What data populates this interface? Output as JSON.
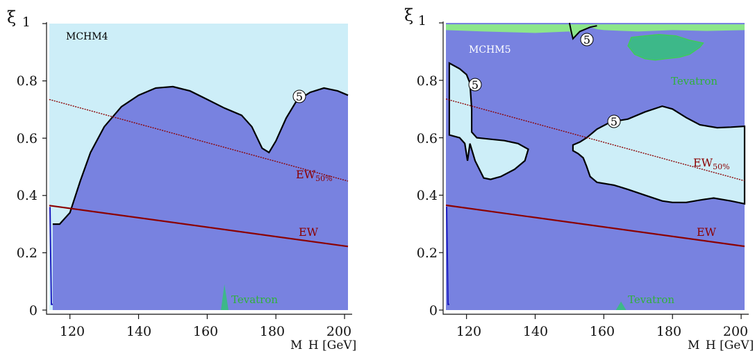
{
  "chart_data": [
    {
      "type": "area",
      "model_label": "MCHM4",
      "xlabel": "M_H [GeV]",
      "ylabel": "ξ",
      "xlim": [
        114,
        201
      ],
      "ylim": [
        0,
        1
      ],
      "xticks": [
        "120",
        "140",
        "160",
        "180",
        "200"
      ],
      "yticks": [
        "0",
        "0.2",
        "0.4",
        "0.6",
        "0.8",
        "1"
      ],
      "colors": {
        "allowed": "#cdeef8",
        "excluded": "#7882e0",
        "tevatron": "#3db889",
        "ew": "#8b0000"
      },
      "ew_line": {
        "label": "EW",
        "points": [
          [
            114,
            0.365
          ],
          [
            201,
            0.222
          ]
        ]
      },
      "ew50_line": {
        "label": "EW",
        "label_subscript": "50%",
        "points": [
          [
            114,
            0.735
          ],
          [
            201,
            0.45
          ]
        ]
      },
      "contour_5": {
        "label": "5",
        "points": [
          [
            115,
            0.3
          ],
          [
            117,
            0.3
          ],
          [
            120,
            0.34
          ],
          [
            123,
            0.45
          ],
          [
            126,
            0.55
          ],
          [
            130,
            0.64
          ],
          [
            135,
            0.71
          ],
          [
            140,
            0.75
          ],
          [
            145,
            0.775
          ],
          [
            150,
            0.78
          ],
          [
            155,
            0.765
          ],
          [
            160,
            0.735
          ],
          [
            165,
            0.705
          ],
          [
            170,
            0.68
          ],
          [
            173,
            0.64
          ],
          [
            176,
            0.565
          ],
          [
            178,
            0.55
          ],
          [
            180,
            0.59
          ],
          [
            183,
            0.67
          ],
          [
            186,
            0.73
          ],
          [
            190,
            0.76
          ],
          [
            194,
            0.775
          ],
          [
            198,
            0.765
          ],
          [
            201,
            0.75
          ]
        ]
      },
      "tevatron_region": {
        "label": "Tevatron",
        "points": [
          [
            164.0,
            0
          ],
          [
            165.0,
            0.09
          ],
          [
            166.2,
            0
          ]
        ]
      }
    },
    {
      "type": "area",
      "model_label": "MCHM5",
      "xlabel": "M_H [GeV]",
      "ylabel": "ξ",
      "xlim": [
        114,
        201
      ],
      "ylim": [
        0,
        1
      ],
      "xticks": [
        "120",
        "140",
        "160",
        "180",
        "200"
      ],
      "yticks": [
        "0",
        "0.2",
        "0.4",
        "0.6",
        "0.8",
        "1"
      ],
      "colors": {
        "allowed": "#cdeef8",
        "excluded": "#7882e0",
        "tevatron": "#3db889",
        "top_band": "#8ce68a",
        "ew": "#8b0000"
      },
      "ew_line": {
        "label": "EW",
        "points": [
          [
            114,
            0.365
          ],
          [
            201,
            0.222
          ]
        ]
      },
      "ew50_line": {
        "label": "EW",
        "label_subscript": "50%",
        "points": [
          [
            114,
            0.735
          ],
          [
            201,
            0.45
          ]
        ]
      },
      "contour_5": {
        "label": "5"
      },
      "allowed_regions": [
        [
          [
            115,
            0.86
          ],
          [
            118,
            0.84
          ],
          [
            120,
            0.82
          ],
          [
            121,
            0.79
          ],
          [
            121.5,
            0.7
          ],
          [
            121.5,
            0.62
          ],
          [
            123,
            0.6
          ],
          [
            127,
            0.595
          ],
          [
            131,
            0.59
          ],
          [
            135,
            0.58
          ],
          [
            138,
            0.56
          ],
          [
            137,
            0.52
          ],
          [
            134,
            0.49
          ],
          [
            130,
            0.465
          ],
          [
            127,
            0.455
          ],
          [
            125,
            0.46
          ],
          [
            122.5,
            0.52
          ],
          [
            121,
            0.58
          ],
          [
            120.3,
            0.52
          ],
          [
            119.5,
            0.58
          ],
          [
            118,
            0.6
          ],
          [
            115,
            0.61
          ]
        ],
        [
          [
            151,
            0.575
          ],
          [
            153,
            0.585
          ],
          [
            155,
            0.6
          ],
          [
            158,
            0.63
          ],
          [
            162,
            0.655
          ],
          [
            167,
            0.665
          ],
          [
            172,
            0.69
          ],
          [
            177,
            0.71
          ],
          [
            180,
            0.7
          ],
          [
            184,
            0.67
          ],
          [
            188,
            0.645
          ],
          [
            193,
            0.635
          ],
          [
            197,
            0.637
          ],
          [
            201,
            0.64
          ],
          [
            201,
            0.37
          ],
          [
            197,
            0.38
          ],
          [
            192,
            0.39
          ],
          [
            188,
            0.383
          ],
          [
            184,
            0.375
          ],
          [
            180,
            0.375
          ],
          [
            177,
            0.38
          ],
          [
            172,
            0.4
          ],
          [
            167,
            0.42
          ],
          [
            163,
            0.435
          ],
          [
            158,
            0.445
          ],
          [
            156,
            0.465
          ],
          [
            155,
            0.5
          ],
          [
            154,
            0.53
          ],
          [
            152.5,
            0.545
          ],
          [
            151,
            0.555
          ]
        ]
      ],
      "top_band": [
        [
          114,
          0.995
        ],
        [
          201,
          0.995
        ],
        [
          201,
          0.975
        ],
        [
          190,
          0.972
        ],
        [
          180,
          0.975
        ],
        [
          170,
          0.97
        ],
        [
          160,
          0.975
        ],
        [
          158,
          0.978
        ],
        [
          156,
          0.985
        ],
        [
          153,
          0.97
        ],
        [
          151,
          0.945
        ],
        [
          150,
          0.97
        ],
        [
          140,
          0.965
        ],
        [
          125,
          0.97
        ],
        [
          114,
          0.975
        ]
      ],
      "tevatron_region": {
        "label": "Tevatron",
        "points": [
          [
            168,
            0.95
          ],
          [
            172,
            0.955
          ],
          [
            176,
            0.96
          ],
          [
            181,
            0.955
          ],
          [
            185,
            0.94
          ],
          [
            189,
            0.93
          ],
          [
            188,
            0.915
          ],
          [
            185,
            0.89
          ],
          [
            182,
            0.88
          ],
          [
            178,
            0.875
          ],
          [
            175,
            0.87
          ],
          [
            172,
            0.875
          ],
          [
            169,
            0.89
          ],
          [
            167,
            0.92
          ]
        ],
        "bottom_points": [
          [
            163.5,
            0
          ],
          [
            165,
            0.03
          ],
          [
            166.5,
            0
          ]
        ]
      }
    }
  ]
}
